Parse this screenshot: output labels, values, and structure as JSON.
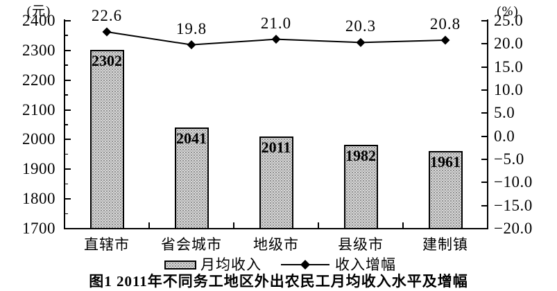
{
  "chart_data": {
    "type": "bar",
    "subtype": "bar-line-combo",
    "title": "图1  2011年不同务工地区外出农民工月均收入水平及增幅",
    "categories": [
      "直辖市",
      "省会城市",
      "地级市",
      "县级市",
      "建制镇"
    ],
    "series": [
      {
        "name": "月均收入",
        "type": "bar",
        "axis": "left",
        "values": [
          2302,
          2041,
          2011,
          1982,
          1961
        ],
        "labels": [
          "2302",
          "2041",
          "2011",
          "1982",
          "1961"
        ]
      },
      {
        "name": "收入增幅",
        "type": "line",
        "axis": "right",
        "values": [
          22.6,
          19.8,
          21.0,
          20.3,
          20.8
        ],
        "labels": [
          "22.6",
          "19.8",
          "21.0",
          "20.3",
          "20.8"
        ]
      }
    ],
    "left_axis": {
      "unit": "(元)",
      "min": 1700,
      "max": 2400,
      "tick_step": 100,
      "tick_labels": [
        "2400",
        "2300",
        "2200",
        "2100",
        "2000",
        "1900",
        "1800",
        "1700"
      ]
    },
    "right_axis": {
      "unit": "(%)",
      "min": -20,
      "max": 25,
      "tick_step": 5,
      "tick_labels": [
        "25.0",
        "20.0",
        "15.0",
        "10.0",
        "5.0",
        "0.0",
        "−5.0",
        "−10.0",
        "−15.0",
        "−20.0"
      ]
    },
    "legend_position": "bottom",
    "grid": false,
    "colors": {
      "bar_fill": "#d9d9d9",
      "bar_border": "#000000",
      "line": "#000000",
      "text": "#000000",
      "background": "#ffffff"
    }
  }
}
